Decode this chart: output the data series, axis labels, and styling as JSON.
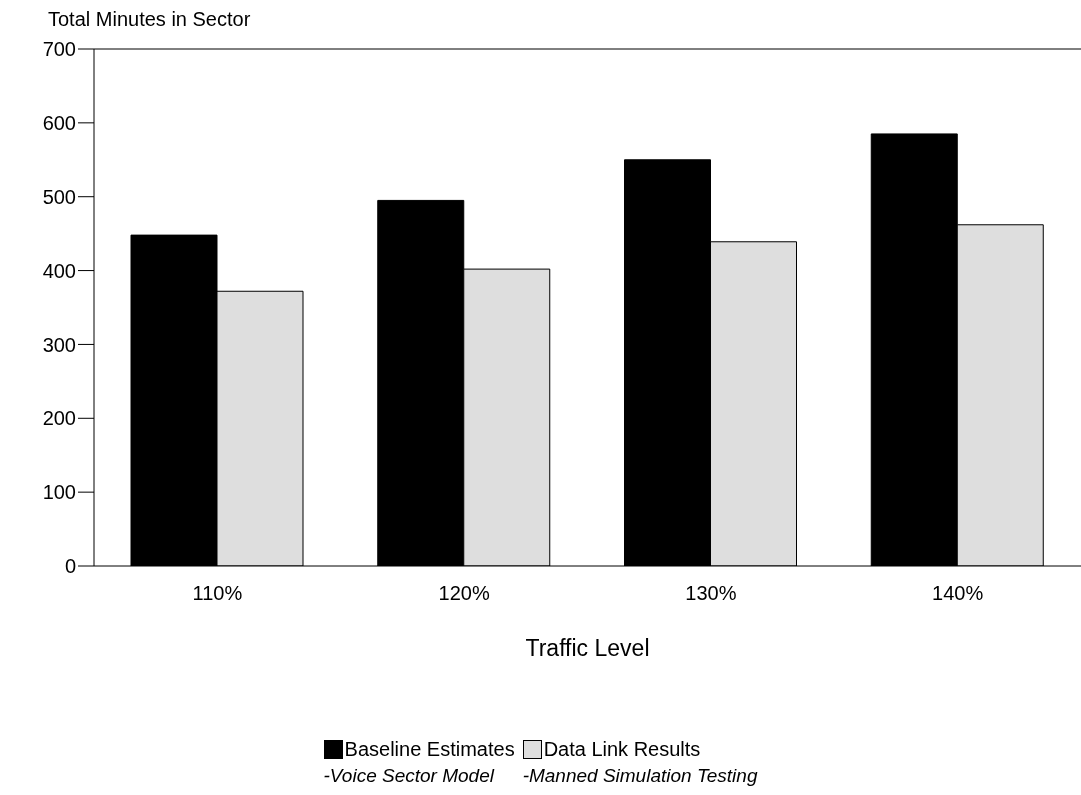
{
  "chart_data": {
    "type": "bar",
    "ylabel": "Total Minutes in Sector",
    "xlabel": "Traffic Level",
    "categories": [
      "110%",
      "120%",
      "130%",
      "140%"
    ],
    "series": [
      {
        "name": "Baseline Estimates",
        "color": "#000000",
        "values": [
          448,
          495,
          550,
          585
        ]
      },
      {
        "name": "Data Link Results",
        "color": "#dedede",
        "values": [
          372,
          402,
          439,
          462
        ]
      }
    ],
    "ylim": [
      0,
      700
    ],
    "yticks": [
      0,
      100,
      200,
      300,
      400,
      500,
      600,
      700
    ],
    "legend": "bottom",
    "annotations": [
      "-Voice Sector Model",
      "-Manned Simulation Testing"
    ]
  }
}
